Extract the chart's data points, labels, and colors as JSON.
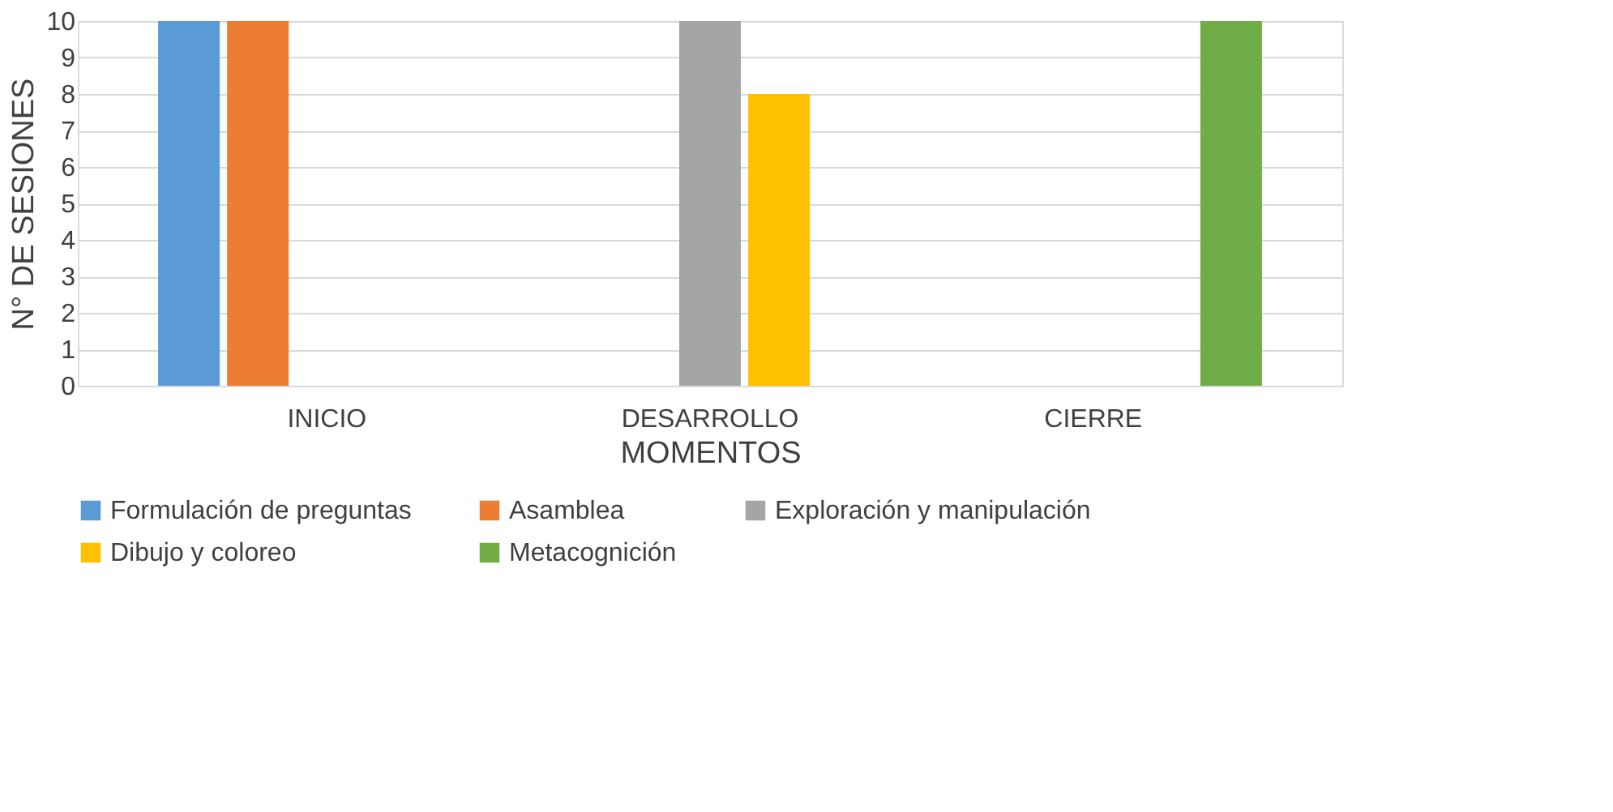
{
  "chart_data": {
    "type": "bar",
    "xlabel": "MOMENTOS",
    "ylabel": "N° DE SESIONES",
    "categories": [
      "INICIO",
      "DESARROLLO",
      "CIERRE"
    ],
    "series": [
      {
        "name": "Formulación de preguntas",
        "color": "#5b9bd5",
        "values": [
          10,
          null,
          null
        ]
      },
      {
        "name": "Asamblea",
        "color": "#ed7d31",
        "values": [
          10,
          null,
          null
        ]
      },
      {
        "name": "Exploración y manipulación",
        "color": "#a5a5a5",
        "values": [
          null,
          10,
          null
        ]
      },
      {
        "name": "Dibujo y coloreo",
        "color": "#ffc000",
        "values": [
          null,
          8,
          null
        ]
      },
      {
        "name": "Metacognición",
        "color": "#70ad47",
        "values": [
          null,
          null,
          10
        ]
      }
    ],
    "ylim": [
      0,
      10
    ],
    "yticks": [
      0,
      1,
      2,
      3,
      4,
      5,
      6,
      7,
      8,
      9,
      10
    ],
    "grid": "y",
    "legend": "bottom"
  }
}
